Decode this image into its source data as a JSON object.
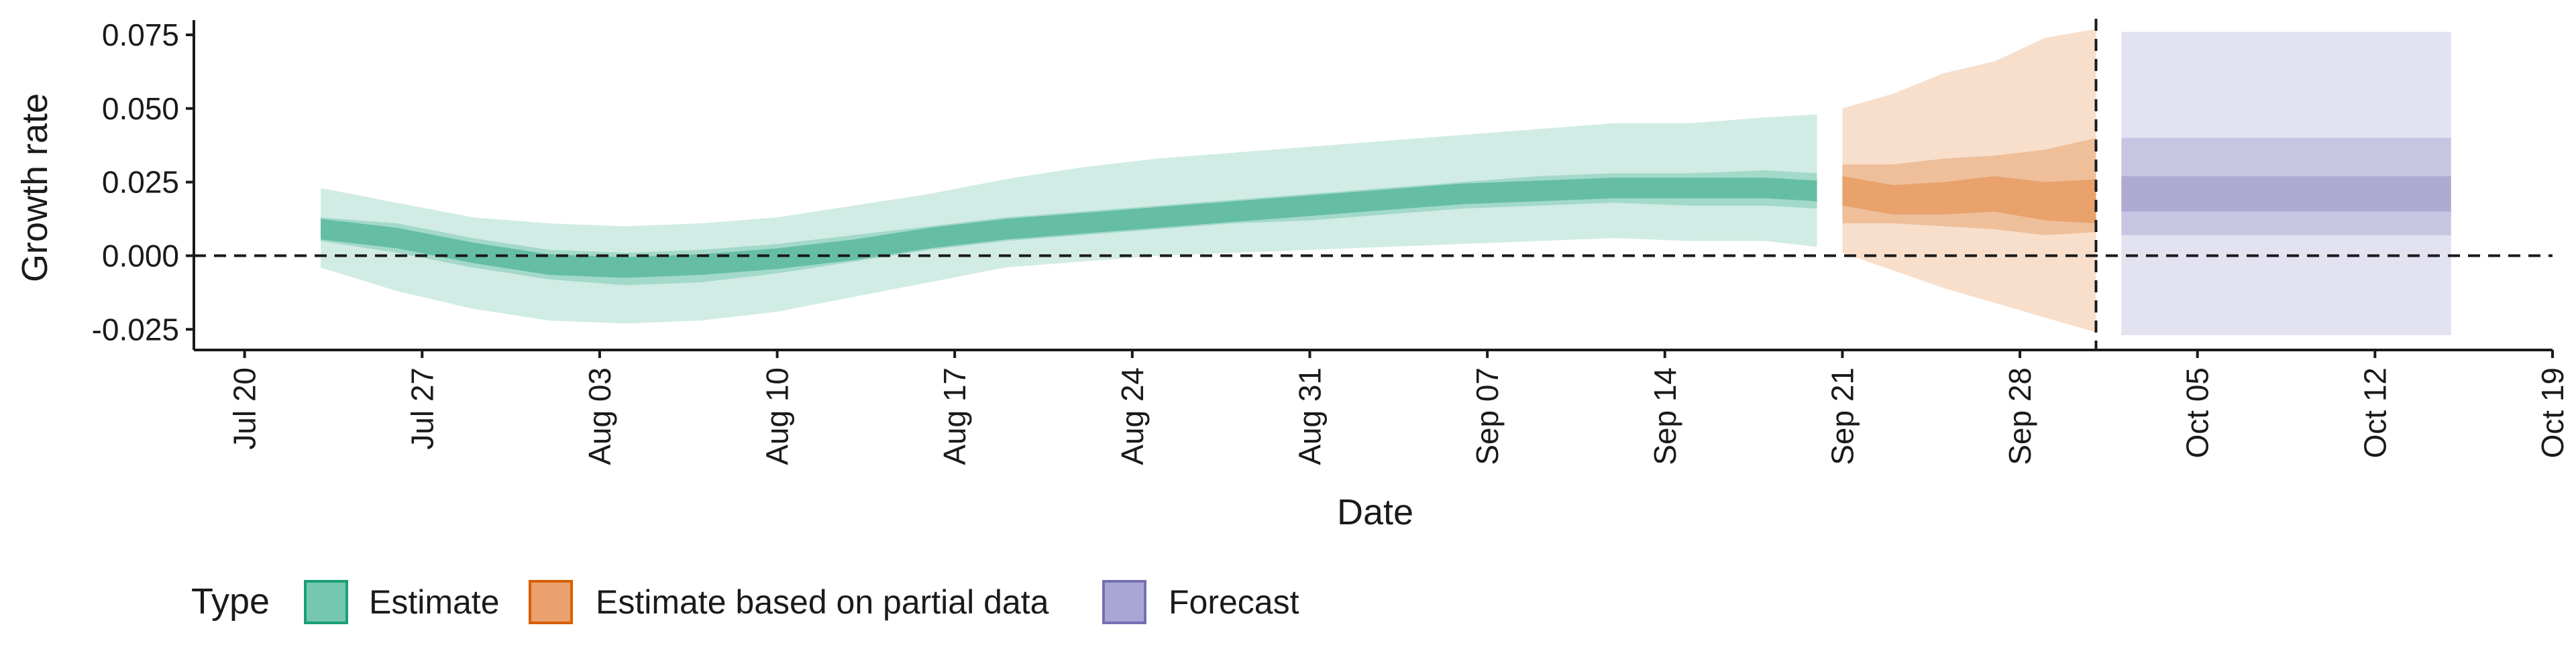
{
  "colors": {
    "estimate": "#1b9e77",
    "estimate_partial": "#d95f02",
    "forecast": "#7570b3",
    "estimate_fill": "#75c8ad",
    "partial_fill": "#eba16f",
    "forecast_fill": "#a9a6d4",
    "axis": "#1a1a1a"
  },
  "chart_data": {
    "type": "area",
    "title": "",
    "xlabel": "Date",
    "ylabel": "Growth rate",
    "xlim": [
      "2020-07-18",
      "2020-10-19"
    ],
    "ylim": [
      -0.032,
      0.08
    ],
    "x_ticks": [
      {
        "date": "2020-07-20",
        "label": "Jul 20"
      },
      {
        "date": "2020-07-27",
        "label": "Jul 27"
      },
      {
        "date": "2020-08-03",
        "label": "Aug 03"
      },
      {
        "date": "2020-08-10",
        "label": "Aug 10"
      },
      {
        "date": "2020-08-17",
        "label": "Aug 17"
      },
      {
        "date": "2020-08-24",
        "label": "Aug 24"
      },
      {
        "date": "2020-08-31",
        "label": "Aug 31"
      },
      {
        "date": "2020-09-07",
        "label": "Sep 07"
      },
      {
        "date": "2020-09-14",
        "label": "Sep 14"
      },
      {
        "date": "2020-09-21",
        "label": "Sep 21"
      },
      {
        "date": "2020-09-28",
        "label": "Sep 28"
      },
      {
        "date": "2020-10-05",
        "label": "Oct 05"
      },
      {
        "date": "2020-10-12",
        "label": "Oct 12"
      },
      {
        "date": "2020-10-19",
        "label": "Oct 19"
      }
    ],
    "y_ticks": [
      {
        "value": -0.025,
        "label": "-0.025"
      },
      {
        "value": 0.0,
        "label": "0.000"
      },
      {
        "value": 0.025,
        "label": "0.025"
      },
      {
        "value": 0.05,
        "label": "0.050"
      },
      {
        "value": 0.075,
        "label": "0.075"
      }
    ],
    "reference_lines": {
      "horizontal_dashed_y": 0.0,
      "vertical_dashed_x": "2020-10-01"
    },
    "legend": {
      "title": "Type",
      "position": "bottom-left",
      "entries": [
        "Estimate",
        "Estimate based on partial data",
        "Forecast"
      ]
    },
    "series": [
      {
        "name": "Estimate",
        "color_key": "estimate",
        "x": [
          "2020-07-23",
          "2020-07-26",
          "2020-07-29",
          "2020-08-01",
          "2020-08-04",
          "2020-08-07",
          "2020-08-10",
          "2020-08-13",
          "2020-08-16",
          "2020-08-19",
          "2020-08-22",
          "2020-08-25",
          "2020-08-28",
          "2020-08-31",
          "2020-09-03",
          "2020-09-06",
          "2020-09-09",
          "2020-09-12",
          "2020-09-15",
          "2020-09-18",
          "2020-09-20"
        ],
        "lower90": [
          -0.004,
          -0.012,
          -0.018,
          -0.022,
          -0.023,
          -0.022,
          -0.019,
          -0.014,
          -0.009,
          -0.004,
          -0.002,
          0.0,
          0.001,
          0.002,
          0.003,
          0.004,
          0.005,
          0.006,
          0.005,
          0.005,
          0.003
        ],
        "upper90": [
          0.023,
          0.018,
          0.013,
          0.011,
          0.01,
          0.011,
          0.013,
          0.017,
          0.021,
          0.026,
          0.03,
          0.033,
          0.035,
          0.037,
          0.039,
          0.041,
          0.043,
          0.045,
          0.045,
          0.047,
          0.048
        ],
        "lower50": [
          0.005,
          0.001,
          -0.004,
          -0.008,
          -0.01,
          -0.009,
          -0.006,
          -0.002,
          0.002,
          0.005,
          0.007,
          0.009,
          0.011,
          0.012,
          0.014,
          0.016,
          0.017,
          0.018,
          0.017,
          0.017,
          0.016
        ],
        "upper50": [
          0.013,
          0.011,
          0.006,
          0.002,
          0.001,
          0.002,
          0.004,
          0.007,
          0.01,
          0.013,
          0.015,
          0.017,
          0.019,
          0.021,
          0.023,
          0.025,
          0.027,
          0.028,
          0.028,
          0.029,
          0.028
        ],
        "median": [
          0.009,
          0.006,
          0.001,
          -0.003,
          -0.004,
          -0.003,
          -0.001,
          0.002,
          0.006,
          0.009,
          0.011,
          0.013,
          0.015,
          0.017,
          0.019,
          0.021,
          0.022,
          0.023,
          0.023,
          0.023,
          0.022
        ]
      },
      {
        "name": "Estimate based on partial data",
        "color_key": "estimate_partial",
        "x": [
          "2020-09-21",
          "2020-09-23",
          "2020-09-25",
          "2020-09-27",
          "2020-09-29",
          "2020-10-01"
        ],
        "lower90": [
          0.001,
          -0.005,
          -0.011,
          -0.016,
          -0.021,
          -0.026
        ],
        "upper90": [
          0.05,
          0.055,
          0.062,
          0.066,
          0.074,
          0.077
        ],
        "lower50": [
          0.011,
          0.011,
          0.01,
          0.009,
          0.007,
          0.008
        ],
        "upper50": [
          0.031,
          0.031,
          0.033,
          0.034,
          0.036,
          0.04
        ],
        "lower_inner": [
          0.017,
          0.014,
          0.014,
          0.015,
          0.012,
          0.011
        ],
        "upper_inner": [
          0.027,
          0.024,
          0.025,
          0.027,
          0.025,
          0.026
        ],
        "median": [
          0.021,
          0.019,
          0.019,
          0.02,
          0.018,
          0.019
        ]
      },
      {
        "name": "Forecast",
        "color_key": "forecast",
        "x": [
          "2020-10-02",
          "2020-10-15"
        ],
        "lower90": [
          -0.027,
          -0.027
        ],
        "upper90": [
          0.076,
          0.076
        ],
        "lower50": [
          0.007,
          0.007
        ],
        "upper50": [
          0.04,
          0.04
        ],
        "lower_inner": [
          0.015,
          0.015
        ],
        "upper_inner": [
          0.027,
          0.027
        ]
      }
    ]
  }
}
